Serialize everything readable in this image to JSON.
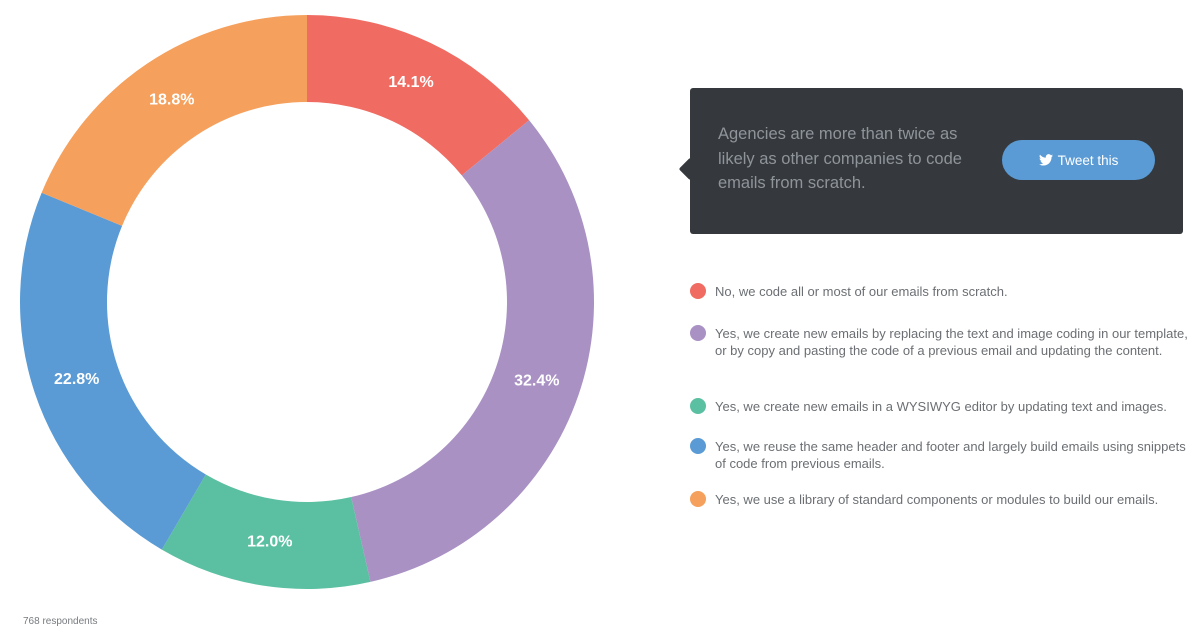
{
  "chart_data": {
    "type": "pie",
    "categories": [
      "No, we code all or most of our emails from scratch.",
      "Yes, we create new emails by replacing the text and image coding in our template, or by copy and pasting the code of a previous email and updating the content.",
      "Yes, we create new emails in a WYSIWYG editor by updating text and images.",
      "Yes, we reuse the same header and footer and largely build emails using snippets of code from previous emails.",
      "Yes, we use a library of standard components or modules to build our emails."
    ],
    "values": [
      14.1,
      32.4,
      12.0,
      22.8,
      18.8
    ],
    "value_labels": [
      "14.1%",
      "32.4%",
      "12.0%",
      "22.8%",
      "18.8%"
    ],
    "colors": [
      "#f06b61",
      "#a991c4",
      "#5bc0a1",
      "#5a9bd5",
      "#f5a05c"
    ],
    "unit": "%",
    "donut": true,
    "start": "top, clockwise",
    "legend_position": "right"
  },
  "callout": {
    "text": "Agencies are more than twice as likely as other companies to code emails from scratch.",
    "button_label": "Tweet this",
    "button_icon": "twitter-bird-icon"
  },
  "footnote": "768 respondents"
}
